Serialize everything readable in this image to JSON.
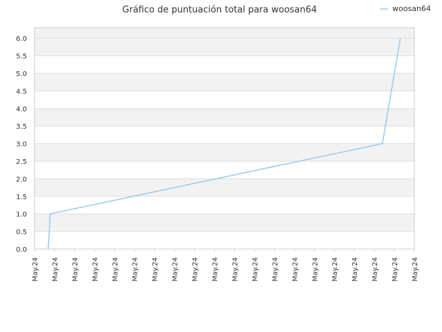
{
  "chart_data": {
    "type": "line",
    "title": "Gráfico de puntuación total para woosan64",
    "xlabel": "",
    "ylabel": "",
    "x_tick_labels": [
      "May.24",
      "May.24",
      "May.24",
      "May.24",
      "May.24",
      "May.24",
      "May.24",
      "May.24",
      "May.24",
      "May.24",
      "May.24",
      "May.24",
      "May.24",
      "May.24",
      "May.24",
      "May.24",
      "May.24",
      "May.24",
      "May.24",
      "May.24"
    ],
    "y_tick_labels": [
      "0.0",
      "0.5",
      "1.0",
      "1.5",
      "2.0",
      "2.5",
      "3.0",
      "3.5",
      "4.0",
      "4.5",
      "5.0",
      "5.5",
      "6.0"
    ],
    "ylim": [
      0,
      6.3
    ],
    "xlim": [
      0,
      19
    ],
    "grid": "horizontal bands",
    "legend_position": "top-right",
    "series": [
      {
        "name": "woosan64",
        "x": [
          0.68,
          0.72,
          0.78,
          17.4,
          18.3
        ],
        "y": [
          0,
          0.3,
          1.0,
          3.0,
          6.0
        ]
      }
    ]
  },
  "colors": {
    "series_line": "#99c9ee",
    "band": "#f2f2f2",
    "grid_line": "#dddddd",
    "axis_line": "#cccccc"
  }
}
